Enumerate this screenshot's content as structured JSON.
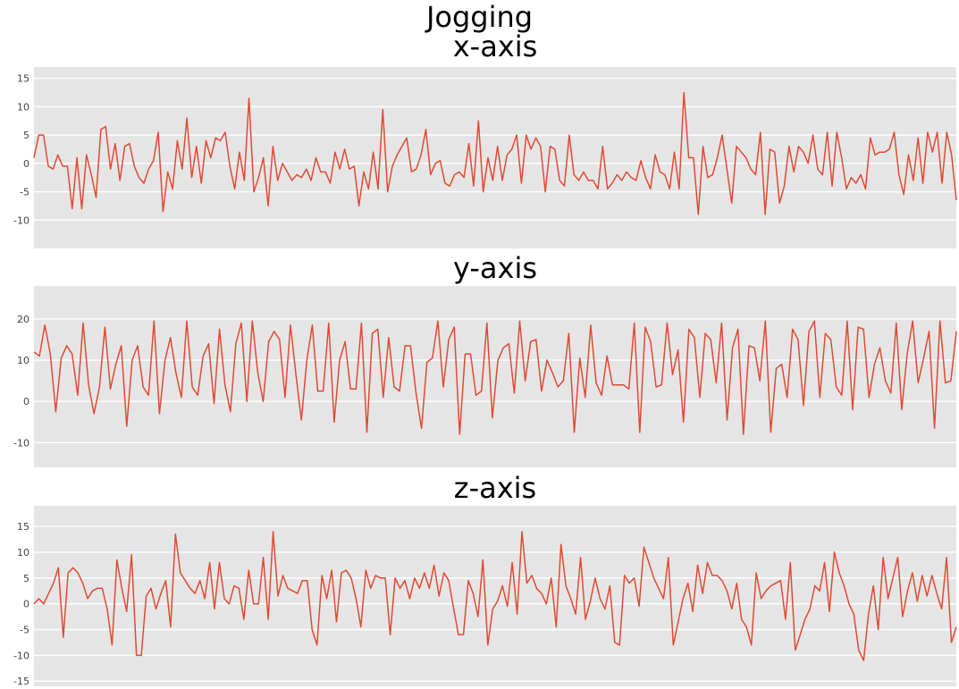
{
  "figure": {
    "title": "Jogging",
    "line_color": "#e24a33",
    "panel_background": "#e5e5e5",
    "grid_color": "#ffffff"
  },
  "chart_data": [
    {
      "type": "line",
      "title": "x-axis",
      "xlabel": "",
      "ylabel": "",
      "xlim": [
        0,
        199
      ],
      "ylim": [
        -15,
        17
      ],
      "yticks": [
        "15",
        "10",
        "5",
        "0",
        "-5",
        "-10"
      ],
      "ytick_values": [
        15,
        10,
        5,
        0,
        -5,
        -10
      ],
      "grid": true,
      "series": [
        {
          "values": [
            1,
            5,
            5,
            -0.5,
            -1,
            1.5,
            -0.5,
            -0.5,
            -8,
            1,
            -8,
            1.5,
            -2,
            -6,
            6,
            6.5,
            -1,
            3.5,
            -3,
            3,
            3.5,
            -0.5,
            -2.5,
            -3.5,
            -1,
            0.5,
            5.5,
            -8.5,
            -1.5,
            -4.5,
            4,
            -1,
            8,
            -2.5,
            3,
            -3.5,
            4,
            1,
            4.5,
            4,
            5.5,
            -0.5,
            -4.5,
            2,
            -3,
            11.5,
            -5,
            -2.5,
            1,
            -7.5,
            3,
            -3,
            0,
            -1.5,
            -3,
            -2,
            -2.5,
            -1,
            -3,
            1,
            -1.5,
            -1.5,
            -3.5,
            2,
            -1,
            2.5,
            -1,
            -0.5,
            -7.5,
            -1.5,
            -4.5,
            2,
            -4.5,
            9.5,
            -5,
            -0.5,
            1.5,
            3,
            4.5,
            -1.5,
            -1,
            1.5,
            6,
            -2,
            0,
            0.5,
            -3.5,
            -4,
            -2,
            -1.5,
            -2.5,
            3.5,
            -4,
            7.5,
            -5,
            1,
            -3,
            3,
            -3,
            1.5,
            2.5,
            5,
            -3.5,
            5,
            2.5,
            4.5,
            3,
            -5,
            3,
            2.5,
            -3,
            -4,
            5,
            -2,
            -3,
            -1.5,
            -3,
            -3,
            -4.5,
            3,
            -4.5,
            -3.5,
            -2,
            -3,
            -1.5,
            -2.5,
            -3,
            0.5,
            -2.5,
            -4.5,
            1.5,
            -1.5,
            -2,
            -4.5,
            2,
            -4.5,
            12.5,
            1,
            1,
            -9,
            3,
            -2.5,
            -2,
            1,
            5,
            -1,
            -7,
            3,
            2,
            1,
            -1,
            -2,
            5.5,
            -9,
            2.5,
            2,
            -7,
            -4,
            3,
            -1.5,
            3,
            2,
            0,
            5,
            -1,
            -2,
            5.5,
            -4,
            5.5,
            1,
            -4.5,
            -2.5,
            -3.5,
            -2,
            -4.5,
            4.5,
            1.5,
            2,
            2,
            2.5,
            5.5,
            -2,
            -5.5,
            1.5,
            -3,
            4.5,
            -3.5,
            5.5,
            2,
            5.5,
            -3.5,
            5.5,
            1.5,
            -6.5
          ]
        }
      ]
    },
    {
      "type": "line",
      "title": "y-axis",
      "xlabel": "",
      "ylabel": "",
      "xlim": [
        0,
        199
      ],
      "ylim": [
        -16,
        28
      ],
      "yticks": [
        "20",
        "10",
        "0",
        "-10"
      ],
      "ytick_values": [
        20,
        10,
        0,
        -10
      ],
      "grid": true,
      "series": [
        {
          "values": [
            12,
            11,
            18.5,
            11.5,
            -2.5,
            10.5,
            13.5,
            11.5,
            1.5,
            19,
            4,
            -3,
            3.5,
            18,
            3,
            9,
            13.5,
            -6,
            10,
            13.5,
            3.5,
            1.5,
            19.5,
            -3,
            10,
            15.5,
            7,
            1,
            19.5,
            3.5,
            1.5,
            11,
            14,
            -0.5,
            17.5,
            4,
            -2.5,
            14,
            19,
            0,
            19.5,
            7,
            0,
            14.5,
            17,
            15,
            1,
            18.5,
            6.5,
            -4.5,
            10,
            18.5,
            2.5,
            2.5,
            19,
            -5,
            10,
            14.5,
            3,
            3,
            19,
            -7.5,
            16.5,
            17.5,
            1,
            15.5,
            3.5,
            2.5,
            13.5,
            13.5,
            2,
            -6.5,
            9.5,
            10.5,
            19.5,
            3.5,
            15,
            18,
            -8,
            11.5,
            11.5,
            1.5,
            2.5,
            19,
            -4,
            10,
            13,
            14,
            2,
            19.5,
            5,
            14.5,
            15,
            2.5,
            10,
            7,
            3.5,
            5,
            16.5,
            -7.5,
            10.5,
            1,
            18.5,
            4.5,
            1.5,
            11,
            4,
            4,
            4,
            3,
            19,
            -7.5,
            18,
            14.5,
            3.5,
            4,
            19,
            6.5,
            12.5,
            -5,
            17.5,
            15.5,
            1,
            16.5,
            15,
            4.5,
            19,
            -4.5,
            13,
            17.5,
            -8,
            13.5,
            13,
            5,
            19.5,
            -7.5,
            8,
            9,
            1,
            17.5,
            15,
            -1,
            17,
            19.5,
            1,
            16.5,
            15,
            3.5,
            1.5,
            19.5,
            -2,
            18,
            17.5,
            1,
            9,
            13,
            5,
            2,
            19,
            -2,
            11.5,
            19.5,
            4.5,
            10.5,
            17,
            -6.5,
            19.5,
            4.5,
            5,
            17
          ]
        }
      ]
    },
    {
      "type": "line",
      "title": "z-axis",
      "xlabel": "",
      "ylabel": "",
      "xlim": [
        0,
        199
      ],
      "ylim": [
        -16,
        19
      ],
      "yticks": [
        "15",
        "10",
        "5",
        "0",
        "-5",
        "-10",
        "-15"
      ],
      "ytick_values": [
        15,
        10,
        5,
        0,
        -5,
        -10,
        -15
      ],
      "grid": true,
      "series": [
        {
          "values": [
            0,
            1,
            0,
            2,
            4,
            7,
            -6.5,
            6,
            7,
            6,
            4,
            1,
            2.5,
            3,
            3,
            -1,
            -8,
            8.5,
            3,
            -1.5,
            9.5,
            -10,
            -10,
            1.5,
            3,
            -1,
            2,
            4.5,
            -4.5,
            13.5,
            6,
            4.5,
            3,
            2,
            4.5,
            1,
            8,
            -1,
            8,
            1,
            0,
            3.5,
            3,
            -3,
            6.5,
            0,
            0,
            9,
            -3,
            14,
            1.5,
            5.5,
            3,
            2.5,
            2,
            4.5,
            4.5,
            -5,
            -8,
            5.5,
            1,
            6.5,
            -3.5,
            6,
            6.5,
            5,
            1,
            -4.5,
            6.5,
            3,
            5.5,
            5,
            5,
            -6,
            5,
            3,
            4.5,
            1,
            5,
            3,
            6,
            3,
            7.5,
            1.5,
            6,
            4.5,
            -1,
            -6,
            -6,
            4.5,
            2,
            -2.5,
            8.5,
            -8,
            -1,
            0.5,
            3.5,
            -0.5,
            8,
            -2,
            14,
            4,
            5.5,
            3,
            2,
            0,
            5,
            -4.5,
            11.5,
            3.5,
            1,
            -2,
            9,
            -3,
            0.5,
            5,
            1,
            -1,
            3.5,
            -7.5,
            -8,
            5.5,
            4,
            5,
            -0.5,
            11,
            8,
            5,
            3,
            1,
            9,
            -8,
            -3.5,
            1,
            4,
            -1.5,
            7.5,
            2,
            8,
            5.5,
            5.5,
            4.5,
            2.5,
            -1,
            4,
            -3,
            -4.5,
            -8,
            6,
            1,
            2.5,
            3.5,
            4,
            4.5,
            -3,
            8,
            -9,
            -6,
            -3,
            -1,
            3.5,
            2.5,
            8,
            -1.5,
            10,
            6,
            3.5,
            0,
            -2,
            -9,
            -11,
            -2,
            3.5,
            -5,
            9,
            1,
            5,
            9,
            -2.5,
            2.5,
            6,
            0.5,
            5.5,
            1.5,
            5.5,
            2,
            -1,
            9,
            -7.5,
            -4.5
          ]
        }
      ]
    }
  ]
}
